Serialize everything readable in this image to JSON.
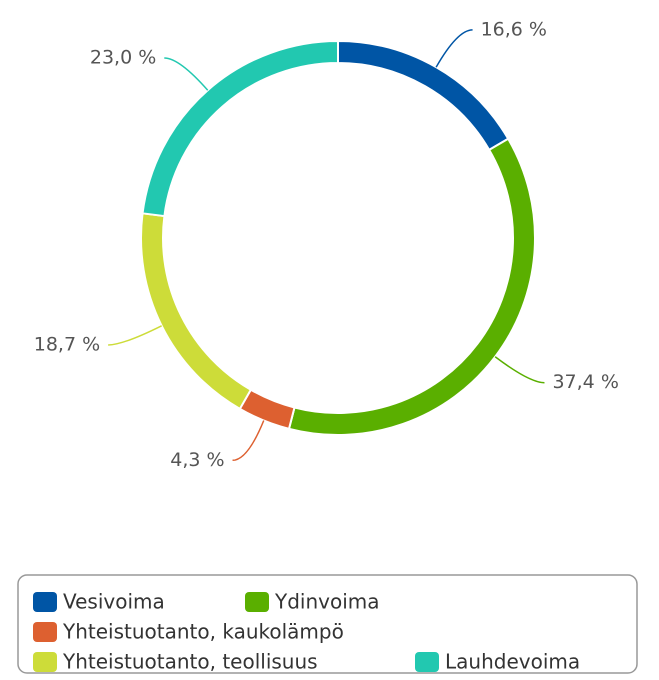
{
  "chart_data": {
    "type": "donut",
    "categories": [
      "Vesivoima",
      "Ydinvoima",
      "Yhteistuotanto, kaukolämpö",
      "Yhteistuotanto, teollisuus",
      "Lauhdevoima"
    ],
    "values": [
      16.6,
      37.4,
      4.3,
      18.7,
      23.0
    ],
    "value_labels": [
      "16,6 %",
      "37,4 %",
      "4,3 %",
      "18,7 %",
      "23,0 %"
    ],
    "colors": [
      "#0055a5",
      "#5aaf00",
      "#dd6030",
      "#cddc39",
      "#22c8b0"
    ],
    "legend": "bottom"
  }
}
